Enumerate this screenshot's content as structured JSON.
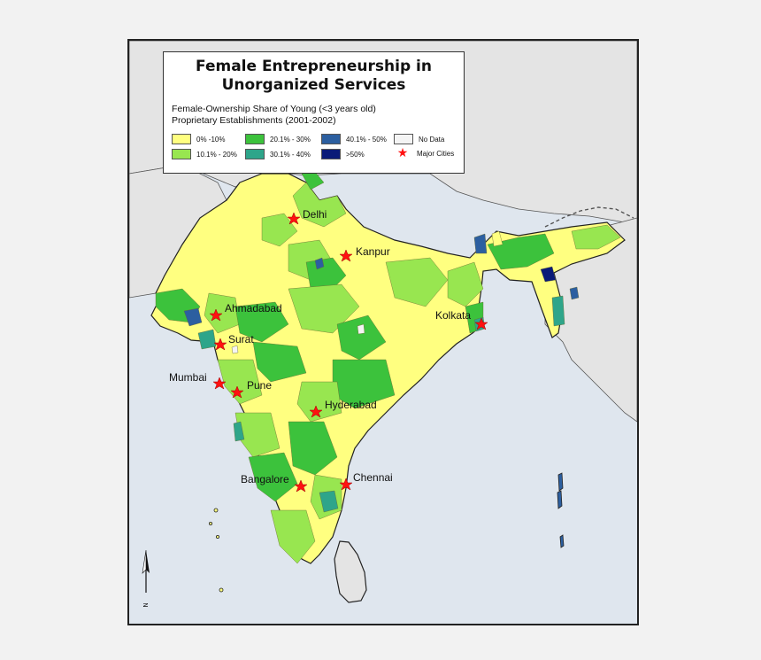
{
  "map": {
    "title_line1": "Female Entrepreneurship in",
    "title_line2": "Unorganized Services",
    "subtitle_line1": "Female-Ownership Share of Young (<3 years old)",
    "subtitle_line2": "Proprietary Establishments (2001-2002)",
    "legend": [
      {
        "label": "0% -10%",
        "color": "#ffff80"
      },
      {
        "label": "10.1% - 20%",
        "color": "#98e650"
      },
      {
        "label": "20.1% - 30%",
        "color": "#3cc23c"
      },
      {
        "label": "30.1% - 40%",
        "color": "#2ea58a"
      },
      {
        "label": "40.1% - 50%",
        "color": "#2c5fa0"
      },
      {
        "label": ">50%",
        "color": "#0a1a78"
      },
      {
        "label": "No Data",
        "color": "#f4f4f4"
      },
      {
        "label": "Major Cities",
        "icon": "red-star-icon",
        "color": "#ff1111"
      }
    ],
    "cities": [
      {
        "name": "Delhi"
      },
      {
        "name": "Kanpur"
      },
      {
        "name": "Ahmadabad"
      },
      {
        "name": "Kolkata"
      },
      {
        "name": "Surat"
      },
      {
        "name": "Mumbai"
      },
      {
        "name": "Pune"
      },
      {
        "name": "Hyderabad"
      },
      {
        "name": "Bangalore"
      },
      {
        "name": "Chennai"
      }
    ],
    "north_label": "N",
    "colors": {
      "sea": "#dfe6ee",
      "neighbor_land": "#e4e4e4",
      "border": "#222222"
    }
  }
}
